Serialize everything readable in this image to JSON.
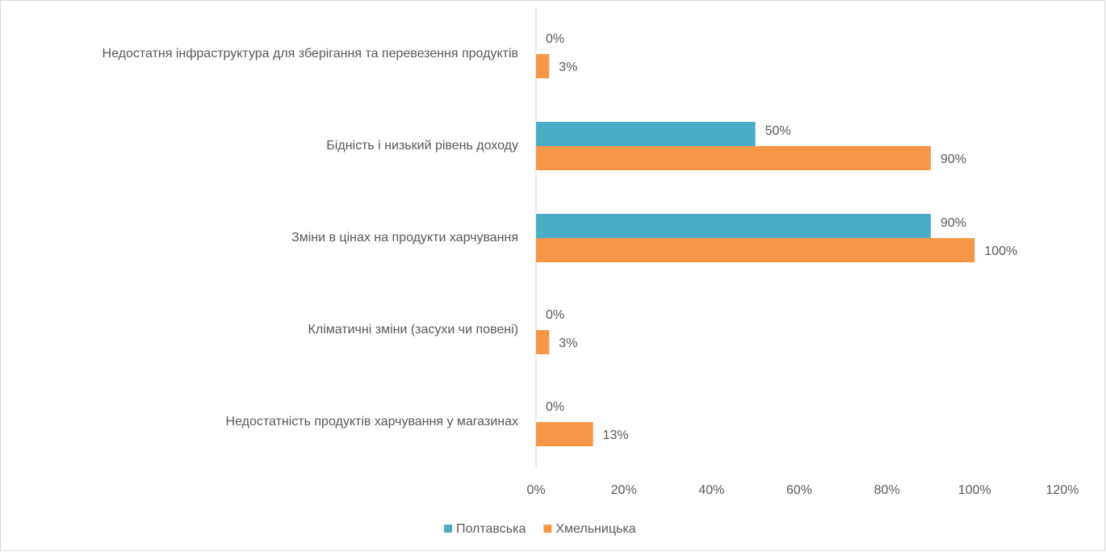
{
  "chart_data": {
    "type": "bar",
    "orientation": "horizontal",
    "categories": [
      "Недостатня інфраструктура для зберігання та перевезення продуктів",
      "Бідність і низький рівень доходу",
      "Зміни в цінах на продукти харчування",
      "Кліматичні зміни (засухи чи повені)",
      "Недостатність продуктів харчування у магазинах"
    ],
    "series": [
      {
        "name": "Полтавська",
        "color": "#4bacc6",
        "values": [
          0,
          50,
          90,
          0,
          0
        ],
        "value_labels": [
          "0%",
          "50%",
          "90%",
          "0%",
          "0%"
        ]
      },
      {
        "name": "Хмельницька",
        "color": "#f79646",
        "values": [
          3,
          90,
          100,
          3,
          13
        ],
        "value_labels": [
          "3%",
          "90%",
          "100%",
          "3%",
          "13%"
        ]
      }
    ],
    "xlim": [
      0,
      120
    ],
    "xticks": [
      {
        "value": 0,
        "label": "0%"
      },
      {
        "value": 20,
        "label": "20%"
      },
      {
        "value": 40,
        "label": "40%"
      },
      {
        "value": 60,
        "label": "60%"
      },
      {
        "value": 80,
        "label": "80%"
      },
      {
        "value": 100,
        "label": "100%"
      },
      {
        "value": 120,
        "label": "120%"
      }
    ],
    "grid": false,
    "legend": "bottom"
  }
}
